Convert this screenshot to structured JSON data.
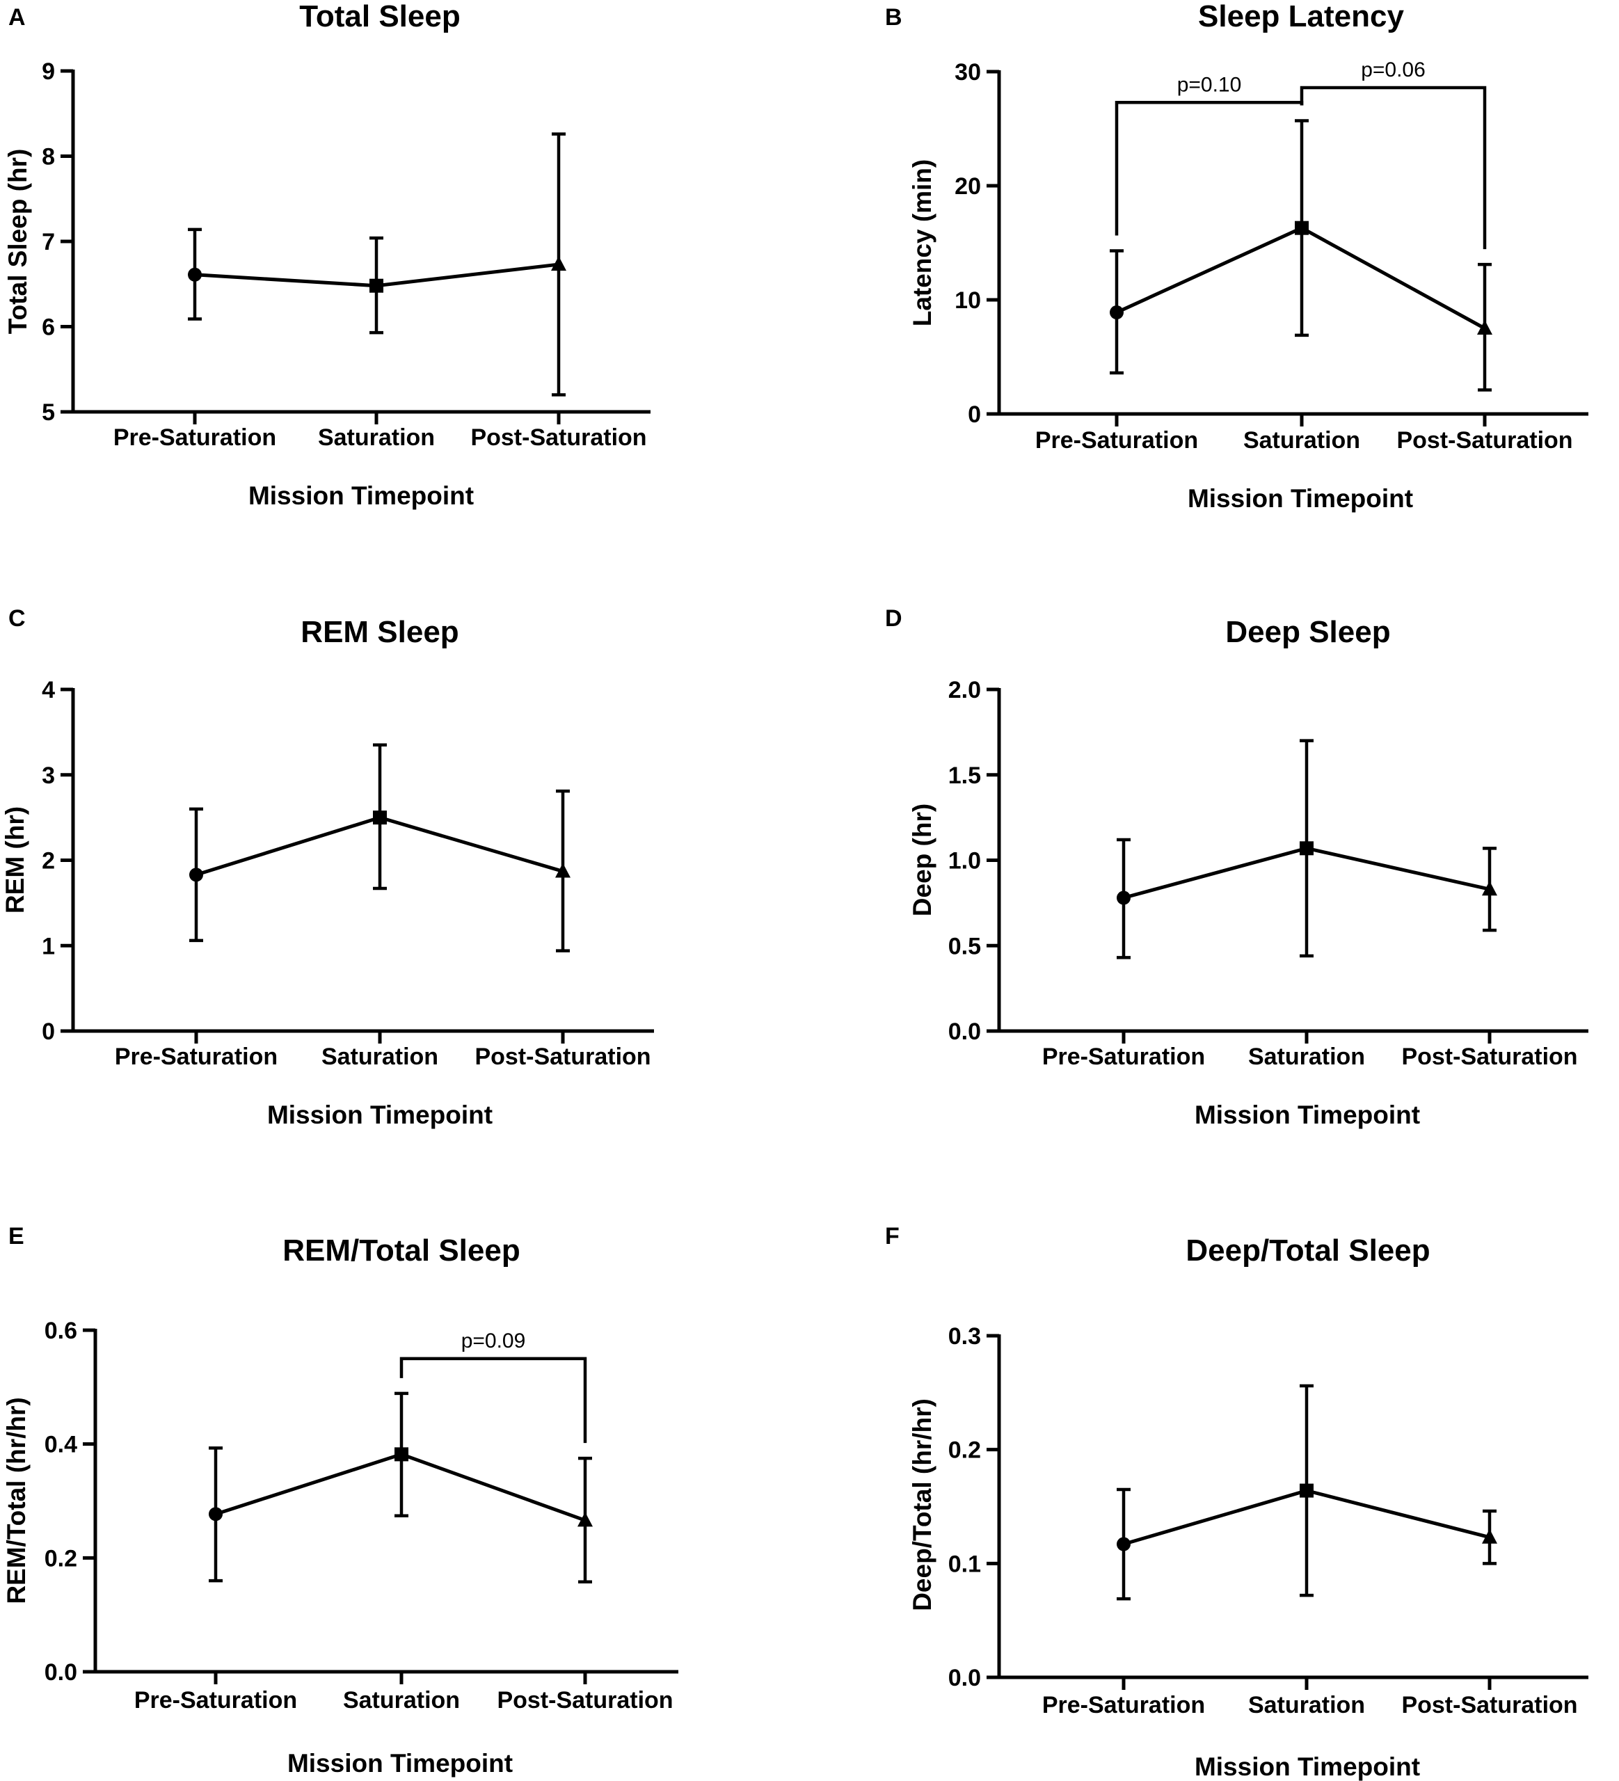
{
  "chart_data": [
    {
      "panel": "A",
      "type": "line",
      "title": "Total Sleep",
      "xlabel": "Mission Timepoint",
      "ylabel": "Total Sleep (hr)",
      "categories": [
        "Pre-Saturation",
        "Saturation",
        "Post-Saturation"
      ],
      "ylim": [
        5,
        9
      ],
      "yticks": [
        "5",
        "6",
        "7",
        "8",
        "9"
      ],
      "tick_values": [
        5,
        6,
        7,
        8,
        9
      ],
      "markers": [
        "circle",
        "square",
        "triangle"
      ],
      "series": [
        {
          "values": [
            6.61,
            6.48,
            6.73
          ],
          "err_low": [
            6.09,
            5.93,
            5.2
          ],
          "err_high": [
            7.14,
            7.04,
            8.26
          ]
        }
      ],
      "brackets": []
    },
    {
      "panel": "B",
      "type": "line",
      "title": "Sleep Latency",
      "xlabel": "Mission Timepoint",
      "ylabel": "Latency (min)",
      "categories": [
        "Pre-Saturation",
        "Saturation",
        "Post-Saturation"
      ],
      "ylim": [
        0,
        30
      ],
      "yticks": [
        "0",
        "10",
        "20",
        "30"
      ],
      "tick_values": [
        0,
        10,
        20,
        30
      ],
      "markers": [
        "circle",
        "square",
        "triangle"
      ],
      "series": [
        {
          "values": [
            8.9,
            16.3,
            7.5
          ],
          "err_low": [
            3.6,
            6.9,
            2.1
          ],
          "err_high": [
            14.3,
            25.7,
            13.1
          ]
        }
      ],
      "brackets": [
        {
          "from": 0,
          "to": 1,
          "y": 27.3,
          "label": "p=0.10"
        },
        {
          "from": 1,
          "to": 2,
          "y": 28.6,
          "label": "p=0.06"
        }
      ]
    },
    {
      "panel": "C",
      "type": "line",
      "title": "REM Sleep",
      "xlabel": "Mission Timepoint",
      "ylabel": "REM (hr)",
      "categories": [
        "Pre-Saturation",
        "Saturation",
        "Post-Saturation"
      ],
      "ylim": [
        0,
        4
      ],
      "yticks": [
        "0",
        "1",
        "2",
        "3",
        "4"
      ],
      "tick_values": [
        0,
        1,
        2,
        3,
        4
      ],
      "markers": [
        "circle",
        "square",
        "triangle"
      ],
      "series": [
        {
          "values": [
            1.83,
            2.5,
            1.87
          ],
          "err_low": [
            1.06,
            1.67,
            0.94
          ],
          "err_high": [
            2.6,
            3.35,
            2.81
          ]
        }
      ],
      "brackets": []
    },
    {
      "panel": "D",
      "type": "line",
      "title": "Deep Sleep",
      "xlabel": "Mission Timepoint",
      "ylabel": "Deep (hr)",
      "categories": [
        "Pre-Saturation",
        "Saturation",
        "Post-Saturation"
      ],
      "ylim": [
        0,
        2
      ],
      "yticks": [
        "0.0",
        "0.5",
        "1.0",
        "1.5",
        "2.0"
      ],
      "tick_values": [
        0,
        0.5,
        1,
        1.5,
        2
      ],
      "markers": [
        "circle",
        "square",
        "triangle"
      ],
      "series": [
        {
          "values": [
            0.78,
            1.07,
            0.83
          ],
          "err_low": [
            0.43,
            0.44,
            0.59
          ],
          "err_high": [
            1.12,
            1.7,
            1.07
          ]
        }
      ],
      "brackets": []
    },
    {
      "panel": "E",
      "type": "line",
      "title": "REM/Total Sleep",
      "xlabel": "Mission Timepoint",
      "ylabel": "REM/Total (hr/hr)",
      "categories": [
        "Pre-Saturation",
        "Saturation",
        "Post-Saturation"
      ],
      "ylim": [
        0,
        0.6
      ],
      "yticks": [
        "0.0",
        "0.2",
        "0.4",
        "0.6"
      ],
      "tick_values": [
        0,
        0.2,
        0.4,
        0.6
      ],
      "markers": [
        "circle",
        "square",
        "triangle"
      ],
      "series": [
        {
          "values": [
            0.277,
            0.382,
            0.266
          ],
          "err_low": [
            0.16,
            0.274,
            0.158
          ],
          "err_high": [
            0.393,
            0.489,
            0.375
          ]
        }
      ],
      "brackets": [
        {
          "from": 1,
          "to": 2,
          "y": 0.55,
          "label": "p=0.09"
        }
      ]
    },
    {
      "panel": "F",
      "type": "line",
      "title": "Deep/Total Sleep",
      "xlabel": "Mission Timepoint",
      "ylabel": "Deep/Total (hr/hr)",
      "categories": [
        "Pre-Saturation",
        "Saturation",
        "Post-Saturation"
      ],
      "ylim": [
        0,
        0.3
      ],
      "yticks": [
        "0.0",
        "0.1",
        "0.2",
        "0.3"
      ],
      "tick_values": [
        0,
        0.1,
        0.2,
        0.3
      ],
      "markers": [
        "circle",
        "square",
        "triangle"
      ],
      "series": [
        {
          "values": [
            0.117,
            0.164,
            0.123
          ],
          "err_low": [
            0.069,
            0.072,
            0.1
          ],
          "err_high": [
            0.165,
            0.256,
            0.146
          ]
        }
      ],
      "brackets": []
    }
  ]
}
